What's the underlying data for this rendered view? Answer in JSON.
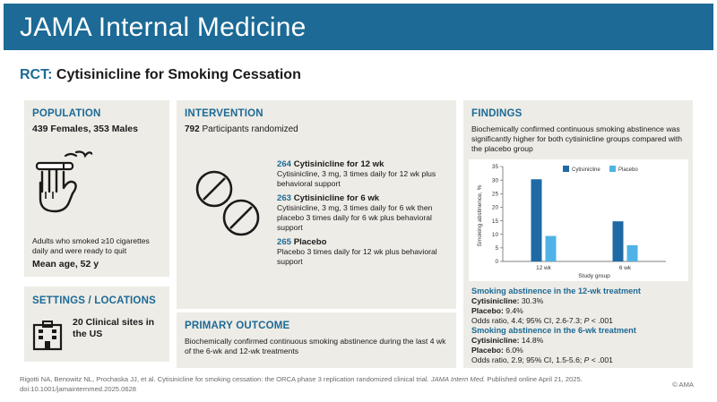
{
  "header": {
    "journal": "JAMA Internal Medicine"
  },
  "study": {
    "tag": "RCT:",
    "title": "Cytisinicline for Smoking Cessation"
  },
  "population": {
    "heading": "POPULATION",
    "summary": "439 Females, 353 Males",
    "description": "Adults who smoked ≥10 cigarettes daily and were ready to quit",
    "mean_age": "Mean age, 52 y",
    "icon": "hand-cigarette-icon"
  },
  "settings": {
    "heading": "SETTINGS / LOCATIONS",
    "summary": "20 Clinical sites in the US",
    "icon": "building-icon"
  },
  "intervention": {
    "heading": "INTERVENTION",
    "randomized_count": "792",
    "randomized_text": "Participants randomized",
    "icon": "pill-icon",
    "arms": [
      {
        "count": "264",
        "name": "Cytisinicline for 12 wk",
        "detail": "Cytisinicline, 3 mg, 3 times daily for 12 wk plus behavioral support"
      },
      {
        "count": "263",
        "name": "Cytisinicline for 6 wk",
        "detail": "Cytisinicline, 3 mg, 3 times daily for 6 wk then placebo 3 times daily for 6 wk plus behavioral support"
      },
      {
        "count": "265",
        "name": "Placebo",
        "detail": "Placebo 3 times daily for 12 wk plus behavioral support"
      }
    ]
  },
  "primary_outcome": {
    "heading": "PRIMARY OUTCOME",
    "text": "Biochemically confirmed continuous smoking abstinence during the last 4 wk of the 6-wk and 12-wk treatments"
  },
  "findings": {
    "heading": "FINDINGS",
    "text": "Biochemically confirmed continuous smoking abstinence was significantly higher for both cytisinicline groups compared with the placebo group",
    "results": [
      {
        "heading": "Smoking abstinence in the 12-wk treatment",
        "cyt_label": "Cytisinicline:",
        "cyt_value": "30.3%",
        "pla_label": "Placebo:",
        "pla_value": "9.4%",
        "odds_prefix": "Odds ratio, 4.4; 95% CI, 2.6-7.3; ",
        "odds_p": "P",
        "odds_suffix": " < .001"
      },
      {
        "heading": "Smoking abstinence in the 6-wk treatment",
        "cyt_label": "Cytisinicline:",
        "cyt_value": "14.8%",
        "pla_label": "Placebo:",
        "pla_value": "6.0%",
        "odds_prefix": "Odds ratio, 2.9; 95% CI, 1.5-5.6; ",
        "odds_p": "P",
        "odds_suffix": " < .001"
      }
    ]
  },
  "chart_data": {
    "type": "bar",
    "categories": [
      "12 wk",
      "6 wk"
    ],
    "series": [
      {
        "name": "Cytisinicline",
        "values": [
          30.3,
          14.8
        ],
        "color": "#1f6aa5"
      },
      {
        "name": "Placebo",
        "values": [
          9.4,
          6.0
        ],
        "color": "#4fb3e8"
      }
    ],
    "xlabel": "Study group",
    "ylabel": "Smoking abstinence, %",
    "ylim": [
      0,
      35
    ],
    "yticks": [
      0,
      5,
      10,
      15,
      20,
      25,
      30,
      35
    ],
    "legend": "top-right",
    "grid": false
  },
  "citation": {
    "line1_prefix": "Rigotti NA, Benowitz NL, Prochaska JJ, et al. Cytisinicline for smoking cessation: the ORCA phase 3 replication randomized clinical trial. ",
    "journal_abbrev": "JAMA Intern Med.",
    "line1_suffix": " Published online April 21, 2025.",
    "doi": "doi:10.1001/jamainternmed.2025.0628",
    "copyright": "© AMA"
  }
}
